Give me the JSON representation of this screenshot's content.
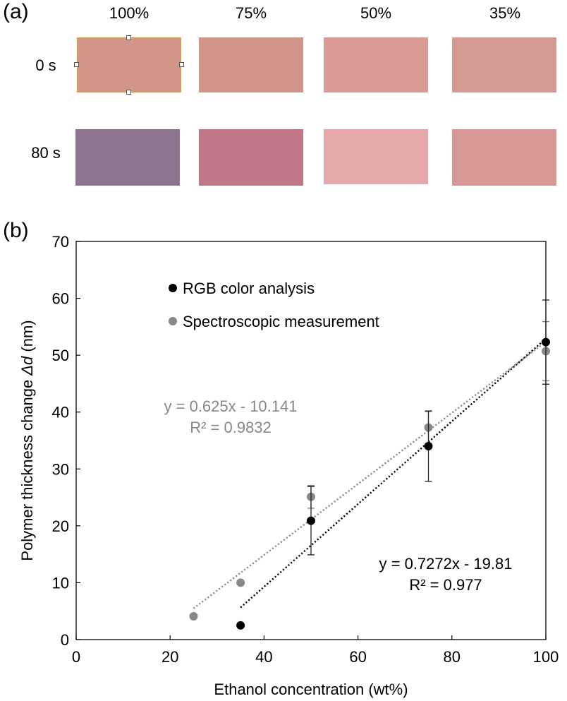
{
  "panel_a": {
    "label": "(a)",
    "columns": [
      "100%",
      "75%",
      "50%",
      "35%"
    ],
    "rows": [
      {
        "label": "0 s",
        "colors": [
          "#d4958a",
          "#d1958a",
          "#d99b94",
          "#d49a91"
        ]
      },
      {
        "label": "80 s",
        "colors": [
          "#8d7590",
          "#c07888",
          "#e6a9ab",
          "#d79893"
        ]
      }
    ]
  },
  "panel_b": {
    "label": "(b)"
  },
  "chart_data": {
    "type": "scatter",
    "xlabel": "Ethanol concentration (wt%)",
    "ylabel_main": "Polymer thickness change ",
    "ylabel_symbol": "Δd",
    "ylabel_unit": " (nm)",
    "xlim": [
      0,
      100
    ],
    "ylim": [
      0,
      70
    ],
    "xticks": [
      0,
      20,
      40,
      60,
      80,
      100
    ],
    "yticks": [
      0,
      10,
      20,
      30,
      40,
      50,
      60,
      70
    ],
    "grid": false,
    "legend_position": "top-left",
    "series": [
      {
        "name": "RGB color analysis",
        "color": "#000000",
        "x": [
          35,
          50,
          75,
          100
        ],
        "y": [
          2.5,
          20.9,
          34.0,
          52.3
        ],
        "err": [
          0.3,
          6.0,
          6.2,
          7.4
        ],
        "fit_label": "y = 0.7272x - 19.81",
        "r2_label": "R² = 0.977",
        "fit_slope": 0.7272,
        "fit_intercept": -19.81,
        "fit_range": [
          35,
          100
        ]
      },
      {
        "name": "Spectroscopic measurement",
        "color": "#888888",
        "x": [
          25,
          35,
          50,
          75,
          100
        ],
        "y": [
          4.1,
          10.0,
          25.1,
          37.3,
          50.7
        ],
        "err": [
          0.2,
          0.2,
          2.0,
          2.8,
          5.2
        ],
        "fit_label": "y = 0.625x - 10.141",
        "r2_label": "R² = 0.9832",
        "fit_slope": 0.625,
        "fit_intercept": -10.141,
        "fit_range": [
          25,
          100
        ]
      }
    ]
  }
}
